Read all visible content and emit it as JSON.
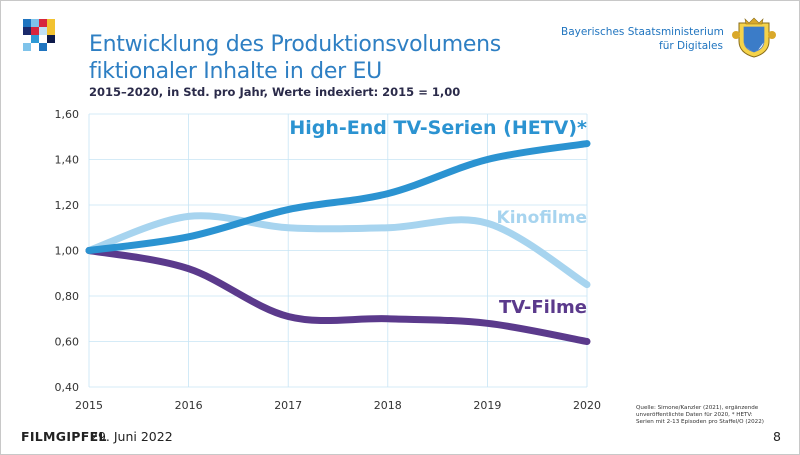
{
  "title_line1": "Entwicklung des Produktionsvolumens",
  "title_line2": "fiktionaler Inhalte in der EU",
  "subtitle": "2015–2020, in Std. pro Jahr, Werte indexiert: 2015 = 1,00",
  "ministry_line1": "Bayerisches Staatsministerium",
  "ministry_line2": "für Digitales",
  "footer_brand": "FILMGIPFEL",
  "footer_date": "29. Juni 2022",
  "page_number": "8",
  "source_lines": [
    "Quelle: Simone/Kanzler (2021), ergänzende",
    "unveröffentlichte Daten für 2020, * HETV:",
    "Serien mit 2-13 Episoden pro Staffel/O (2022)"
  ],
  "logo_colors": [
    "#1f74bf",
    "#7fc3ea",
    "#d7263d",
    "#f2c230",
    "#1b2a6b",
    "#bfe0f5",
    "#2e9ad6",
    "#0d1a4a"
  ],
  "colors": {
    "hetv": "#2b93d1",
    "kino": "#a7d4ef",
    "tv": "#5b3a8c",
    "axis_text": "#333333",
    "grid": "#c7e4f5"
  },
  "chart_data": {
    "type": "line",
    "title": "Entwicklung des Produktionsvolumens fiktionaler Inhalte in der EU",
    "subtitle": "2015–2020, in Std. pro Jahr, Werte indexiert: 2015 = 1,00",
    "x": [
      2015,
      2016,
      2017,
      2018,
      2019,
      2020
    ],
    "ylim": [
      0.4,
      1.6
    ],
    "yticks": [
      0.4,
      0.6,
      0.8,
      1.0,
      1.2,
      1.4,
      1.6
    ],
    "ytick_labels": [
      "0,40",
      "0,60",
      "0,80",
      "1,00",
      "1,20",
      "1,40",
      "1,60"
    ],
    "xtick_labels": [
      "2015",
      "2016",
      "2017",
      "2018",
      "2019",
      "2020"
    ],
    "grid": true,
    "series": [
      {
        "name": "High-End TV-Serien (HETV)*",
        "key": "hetv",
        "values": [
          1.0,
          1.06,
          1.18,
          1.25,
          1.4,
          1.47
        ]
      },
      {
        "name": "Kinofilme",
        "key": "kino",
        "values": [
          1.0,
          1.15,
          1.1,
          1.1,
          1.12,
          0.85
        ]
      },
      {
        "name": "TV-Filme",
        "key": "tv",
        "values": [
          1.0,
          0.92,
          0.71,
          0.7,
          0.68,
          0.6
        ]
      }
    ]
  }
}
